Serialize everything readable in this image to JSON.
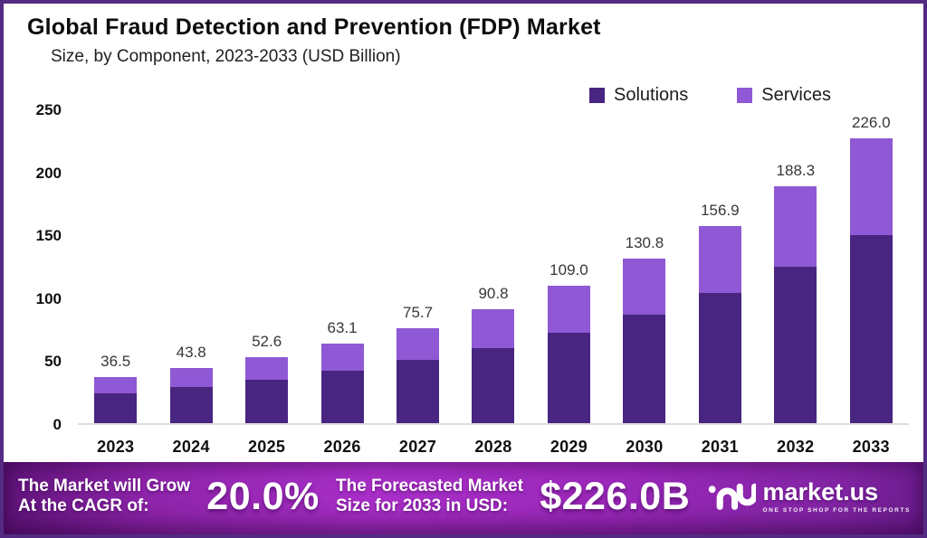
{
  "frame": {
    "border_color": "#532b82",
    "background": "#ffffff"
  },
  "header": {
    "title": "Global Fraud Detection and Prevention (FDP) Market",
    "subtitle": "Size, by Component, 2023-2033 (USD Billion)"
  },
  "legend": {
    "items": [
      {
        "label": "Solutions",
        "color": "#482581"
      },
      {
        "label": "Services",
        "color": "#8f58d4"
      }
    ]
  },
  "chart_data": {
    "type": "bar",
    "stacked": true,
    "title": "Global Fraud Detection and Prevention (FDP) Market",
    "subtitle": "Size, by Component, 2023-2033 (USD Billion)",
    "categories": [
      "2023",
      "2024",
      "2025",
      "2026",
      "2027",
      "2028",
      "2029",
      "2030",
      "2031",
      "2032",
      "2033"
    ],
    "series": [
      {
        "name": "Solutions",
        "color": "#482581",
        "values": [
          24.1,
          28.9,
          34.7,
          41.6,
          50.0,
          59.9,
          71.9,
          86.3,
          103.6,
          124.3,
          149.2
        ]
      },
      {
        "name": "Services",
        "color": "#8f58d4",
        "values": [
          12.4,
          14.9,
          17.9,
          21.5,
          25.7,
          30.9,
          37.1,
          44.5,
          53.3,
          64.0,
          76.8
        ]
      }
    ],
    "totals": [
      36.5,
      43.8,
      52.6,
      63.1,
      75.7,
      90.8,
      109.0,
      130.8,
      156.9,
      188.3,
      226.0
    ],
    "xlabel": "",
    "ylabel": "",
    "ylim": [
      0,
      250
    ],
    "yticks": [
      0,
      50,
      100,
      150,
      200,
      250
    ],
    "grid": false,
    "legend_position": "top-right"
  },
  "banner": {
    "cagr_label_line1": "The Market will Grow",
    "cagr_label_line2": "At the CAGR of:",
    "cagr_value": "20.0%",
    "forecast_label_line1": "The Forecasted Market",
    "forecast_label_line2": "Size for 2033 in USD:",
    "forecast_value": "$226.0B",
    "brand": "market.us",
    "brand_tagline": "ONE STOP SHOP FOR THE REPORTS"
  }
}
